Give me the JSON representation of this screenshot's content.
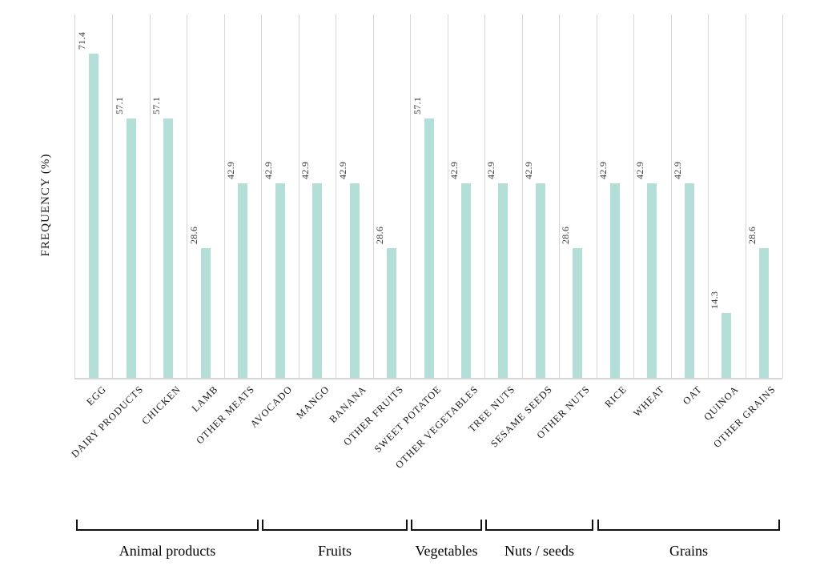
{
  "chart_data": {
    "type": "bar",
    "title": "",
    "xlabel": "",
    "ylabel": "FREQUENCY (%)",
    "ylim": [
      0,
      80
    ],
    "grid": "vertical-category-separators",
    "legend": "none",
    "bar_color": "#b4ded8",
    "gridline_color": "#d6d6d6",
    "categories": [
      "EGG",
      "DAIRY PRODUCTS",
      "CHICKEN",
      "LAMB",
      "OTHER MEATS",
      "AVOCADO",
      "MANGO",
      "BANANA",
      "OTHER FRUITS",
      "SWEET POTATOE",
      "OTHER VEGETABLES",
      "TREE NUTS",
      "SESAME SEEDS",
      "OTHER NUTS",
      "RICE",
      "WHEAT",
      "OAT",
      "QUINOA",
      "OTHER GRAINS"
    ],
    "values": [
      71.4,
      57.1,
      57.1,
      28.6,
      42.9,
      42.9,
      42.9,
      42.9,
      28.6,
      57.1,
      42.9,
      42.9,
      42.9,
      28.6,
      42.9,
      42.9,
      42.9,
      14.3,
      28.6
    ],
    "value_labels": [
      "71.4",
      "57.1",
      "57.1",
      "28.6",
      "42.9",
      "42.9",
      "42.9",
      "42.9",
      "28.6",
      "57.1",
      "42.9",
      "42.9",
      "42.9",
      "28.6",
      "42.9",
      "42.9",
      "42.9",
      "14.3",
      "28.6"
    ],
    "groups": [
      {
        "label": "Animal products",
        "start": 0,
        "count": 5
      },
      {
        "label": "Fruits",
        "start": 5,
        "count": 4
      },
      {
        "label": "Vegetables",
        "start": 9,
        "count": 2
      },
      {
        "label": "Nuts / seeds",
        "start": 11,
        "count": 3
      },
      {
        "label": "Grains",
        "start": 14,
        "count": 5
      }
    ]
  }
}
